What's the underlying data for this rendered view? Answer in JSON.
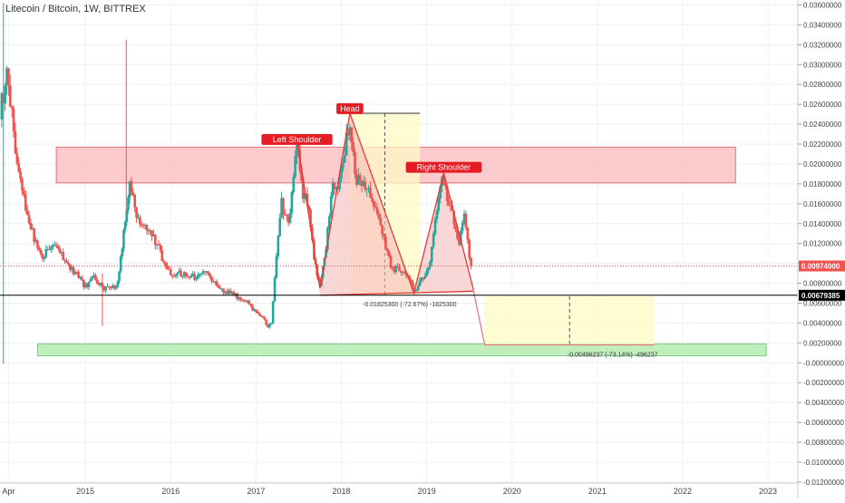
{
  "header": {
    "symbol_title": "Litecoin / Bitcoin, 1W, BITTREX"
  },
  "colors": {
    "up": "#26a69a",
    "down": "#ef5350",
    "resistance_zone": "#f7a1a5",
    "support_zone": "#a5e8a2",
    "measure_zone": "#fff9c4",
    "pattern_fill": "#f6bcbc",
    "label_bg": "#e51c23",
    "current_price": "#ef5350",
    "horizontal_line": "#000000"
  },
  "chart_data": {
    "type": "candlestick",
    "x_axis_labels": [
      "Apr",
      "2015",
      "2016",
      "2017",
      "2018",
      "2019",
      "2020",
      "2021",
      "2022",
      "2023"
    ],
    "y_axis_ticks": [
      "0.03600000",
      "0.03400000",
      "0.03200000",
      "0.03000000",
      "0.02800000",
      "0.02600000",
      "0.02400000",
      "0.02200000",
      "0.02000000",
      "0.01800000",
      "0.01600000",
      "0.01400000",
      "0.01200000",
      "0.01000000",
      "0.00800000",
      "0.00600000",
      "0.00400000",
      "0.00200000",
      "-0.00000000",
      "-0.00200000",
      "-0.00400000",
      "-0.00600000",
      "-0.00800000",
      "-0.01000000",
      "-0.01200000"
    ],
    "ylim": [
      -0.0121,
      0.0365
    ],
    "xlim": [
      2014.0,
      2023.35
    ],
    "current_price": {
      "value": 0.00974,
      "label": "0.00974000"
    },
    "horizontal_line": {
      "value": 0.00679385,
      "label": "0.00679385"
    },
    "resistance_zone": {
      "x": [
        2014.66,
        2022.62
      ],
      "y": [
        0.0181,
        0.0217
      ]
    },
    "support_zone": {
      "x": [
        2014.44,
        2022.98
      ],
      "y": [
        0.0007,
        0.0019
      ]
    },
    "annotations": [
      {
        "text": "Left Shoulder",
        "x": 2017.48,
        "y": 0.0221
      },
      {
        "text": "Head",
        "x": 2018.1,
        "y": 0.0252
      },
      {
        "text": "Right Shoulder",
        "x": 2019.2,
        "y": 0.0193
      }
    ],
    "measurements": [
      {
        "text": "-0.01825300 (-72.67%) -1825300",
        "x": 2018.25,
        "y": 0.0057
      },
      {
        "text": "-0.00496237 (-73.14%) -496237",
        "x": 2020.65,
        "y": 0.0006
      }
    ],
    "pattern_points": [
      [
        2017.48,
        0.0226
      ],
      [
        2017.75,
        0.0075
      ],
      [
        2018.1,
        0.0251
      ],
      [
        2018.85,
        0.007
      ],
      [
        2019.2,
        0.0191
      ],
      [
        2019.55,
        0.0073
      ]
    ],
    "neckline": [
      [
        2017.75,
        0.0068
      ],
      [
        2019.55,
        0.0072
      ]
    ],
    "target_line": [
      [
        2019.55,
        0.0072
      ],
      [
        2019.68,
        0.0018
      ],
      [
        2021.67,
        0.0018
      ]
    ],
    "measure_boxes": [
      {
        "x": [
          2018.1,
          2018.92
        ],
        "y": [
          0.0068,
          0.0251
        ]
      },
      {
        "x": [
          2019.68,
          2021.67
        ],
        "y": [
          0.0018,
          0.0067
        ]
      }
    ],
    "closes": [
      [
        2014.0,
        0.0255
      ],
      [
        2014.08,
        0.0285
      ],
      [
        2014.16,
        0.0233
      ],
      [
        2014.24,
        0.0181
      ],
      [
        2014.32,
        0.0145
      ],
      [
        2014.4,
        0.0126
      ],
      [
        2014.5,
        0.0107
      ],
      [
        2014.6,
        0.012
      ],
      [
        2014.7,
        0.0111
      ],
      [
        2014.8,
        0.0096
      ],
      [
        2014.92,
        0.0086
      ],
      [
        2015.0,
        0.0077
      ],
      [
        2015.1,
        0.0085
      ],
      [
        2015.2,
        0.0076
      ],
      [
        2015.3,
        0.0074
      ],
      [
        2015.38,
        0.0081
      ],
      [
        2015.45,
        0.0129
      ],
      [
        2015.52,
        0.0183
      ],
      [
        2015.6,
        0.0148
      ],
      [
        2015.7,
        0.0134
      ],
      [
        2015.8,
        0.0128
      ],
      [
        2015.9,
        0.0104
      ],
      [
        2016.0,
        0.0088
      ],
      [
        2016.1,
        0.009
      ],
      [
        2016.2,
        0.0087
      ],
      [
        2016.3,
        0.0086
      ],
      [
        2016.4,
        0.0091
      ],
      [
        2016.5,
        0.0082
      ],
      [
        2016.6,
        0.0073
      ],
      [
        2016.7,
        0.007
      ],
      [
        2016.8,
        0.0066
      ],
      [
        2016.9,
        0.0062
      ],
      [
        2017.0,
        0.005
      ],
      [
        2017.08,
        0.0045
      ],
      [
        2017.14,
        0.0037
      ],
      [
        2017.18,
        0.004
      ],
      [
        2017.24,
        0.0108
      ],
      [
        2017.3,
        0.0162
      ],
      [
        2017.38,
        0.0136
      ],
      [
        2017.44,
        0.0182
      ],
      [
        2017.48,
        0.022
      ],
      [
        2017.55,
        0.0171
      ],
      [
        2017.62,
        0.0156
      ],
      [
        2017.68,
        0.0101
      ],
      [
        2017.75,
        0.0078
      ],
      [
        2017.82,
        0.0115
      ],
      [
        2017.9,
        0.0183
      ],
      [
        2017.96,
        0.0169
      ],
      [
        2018.02,
        0.0204
      ],
      [
        2018.1,
        0.0245
      ],
      [
        2018.16,
        0.0187
      ],
      [
        2018.24,
        0.0183
      ],
      [
        2018.34,
        0.0168
      ],
      [
        2018.42,
        0.0152
      ],
      [
        2018.5,
        0.0124
      ],
      [
        2018.58,
        0.0096
      ],
      [
        2018.66,
        0.0094
      ],
      [
        2018.74,
        0.009
      ],
      [
        2018.82,
        0.0078
      ],
      [
        2018.88,
        0.0073
      ],
      [
        2018.96,
        0.0087
      ],
      [
        2019.04,
        0.0098
      ],
      [
        2019.1,
        0.0144
      ],
      [
        2019.16,
        0.0176
      ],
      [
        2019.2,
        0.0185
      ],
      [
        2019.26,
        0.0162
      ],
      [
        2019.32,
        0.014
      ],
      [
        2019.38,
        0.0118
      ],
      [
        2019.44,
        0.0155
      ],
      [
        2019.48,
        0.0122
      ],
      [
        2019.52,
        0.0097
      ]
    ],
    "spikes": [
      {
        "x": 2014.04,
        "low": -0.0001,
        "high": 0.0362
      },
      {
        "x": 2015.48,
        "low": 0.015,
        "high": 0.0325
      },
      {
        "x": 2015.2,
        "low": 0.0037,
        "high": 0.009
      }
    ]
  }
}
